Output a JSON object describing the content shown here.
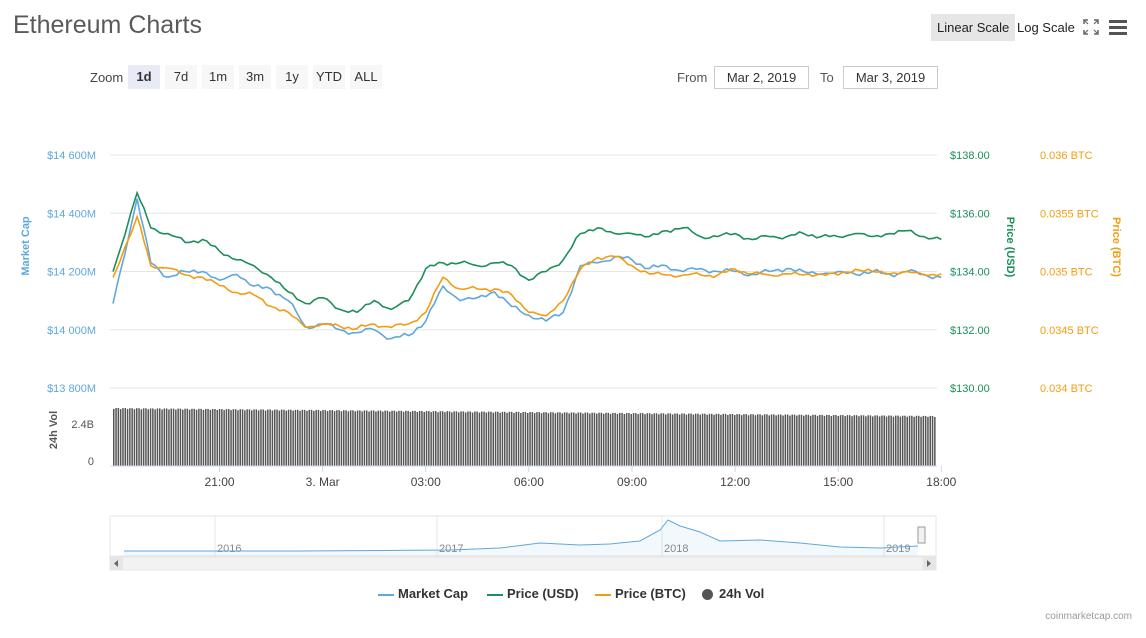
{
  "header": {
    "title": "Ethereum Charts"
  },
  "toolbar": {
    "linear_scale": "Linear Scale",
    "log_scale": "Log Scale",
    "fullscreen_icon": "fullscreen-icon",
    "menu_icon": "hamburger-menu-icon"
  },
  "zoom": {
    "label": "Zoom",
    "options": [
      "1d",
      "7d",
      "1m",
      "3m",
      "1y",
      "YTD",
      "ALL"
    ],
    "selected": "1d"
  },
  "range": {
    "from_label": "From",
    "from_value": "Mar 2, 2019",
    "to_label": "To",
    "to_value": "Mar 3, 2019"
  },
  "colors": {
    "market_cap": "#5fa8dc",
    "price_usd": "#1e8e5b",
    "price_btc": "#f39c12",
    "volume": "#555555",
    "navigator": "#5fa8dc"
  },
  "chart_data": {
    "type": "line",
    "left_axis": {
      "title": "Market Cap",
      "ticks": [
        "$14 600M",
        "$14 400M",
        "$14 200M",
        "$14 000M",
        "$13 800M"
      ],
      "range": [
        13800,
        14600
      ],
      "unit": "M USD"
    },
    "right_axis_usd": {
      "title": "Price (USD)",
      "ticks": [
        "$138.00",
        "$136.00",
        "$134.00",
        "$132.00",
        "$130.00"
      ],
      "range": [
        130,
        138
      ]
    },
    "right_axis_btc": {
      "title": "Price (BTC)",
      "ticks": [
        "0.036 BTC",
        "0.0355 BTC",
        "0.035 BTC",
        "0.0345 BTC",
        "0.034 BTC"
      ],
      "range": [
        0.034,
        0.036
      ]
    },
    "x_ticks": [
      "21:00",
      "3. Mar",
      "03:00",
      "06:00",
      "09:00",
      "12:00",
      "15:00",
      "18:00"
    ],
    "x_hours": [
      -0.1,
      0.6,
      1.0,
      1.5,
      2.0,
      2.5,
      3.0,
      3.5,
      4.0,
      4.5,
      5.0,
      5.5,
      6.0,
      6.5,
      7.0,
      7.5,
      8.0,
      8.5,
      9.0,
      9.5,
      10.0,
      10.5,
      11.0,
      11.5,
      12.0,
      12.5,
      13.0,
      13.5,
      14.0,
      14.5,
      15.0,
      15.5,
      16.0,
      16.5,
      17.0,
      17.5,
      18.0,
      18.5,
      19.0,
      19.5,
      20.0,
      20.5,
      21.0,
      21.5,
      22.0,
      22.5,
      23.0,
      23.5,
      24.0
    ],
    "series": [
      {
        "name": "Market Cap",
        "axis": "left",
        "values": [
          14090,
          14450,
          14230,
          14180,
          14200,
          14200,
          14170,
          14190,
          14150,
          14140,
          14100,
          14010,
          14020,
          14000,
          13990,
          14000,
          13970,
          13980,
          14030,
          14150,
          14100,
          14110,
          14130,
          14080,
          14050,
          14030,
          14060,
          14220,
          14230,
          14250,
          14240,
          14210,
          14220,
          14200,
          14210,
          14200,
          14200,
          14190,
          14200,
          14210,
          14200,
          14190,
          14200,
          14190,
          14200,
          14190,
          14200,
          14190,
          14180
        ]
      },
      {
        "name": "Price (USD)",
        "axis": "usd",
        "values": [
          134.0,
          136.7,
          135.5,
          135.3,
          135.0,
          135.1,
          134.7,
          134.4,
          134.2,
          133.8,
          133.3,
          132.9,
          133.1,
          132.7,
          132.6,
          133.0,
          132.7,
          133.0,
          134.1,
          134.3,
          134.3,
          134.2,
          134.3,
          134.2,
          133.7,
          134.0,
          134.4,
          135.3,
          135.5,
          135.3,
          135.3,
          135.2,
          135.4,
          135.5,
          135.2,
          135.2,
          135.3,
          135.1,
          135.2,
          135.2,
          135.3,
          135.2,
          135.2,
          135.3,
          135.2,
          135.3,
          135.4,
          135.2,
          135.1
        ]
      },
      {
        "name": "Price (BTC)",
        "axis": "btc",
        "values": [
          0.03495,
          0.03547,
          0.03505,
          0.03503,
          0.03497,
          0.03495,
          0.03488,
          0.03482,
          0.0348,
          0.0347,
          0.03465,
          0.03452,
          0.03455,
          0.03453,
          0.03451,
          0.03455,
          0.03452,
          0.03455,
          0.03465,
          0.03495,
          0.03485,
          0.03485,
          0.03485,
          0.0348,
          0.03465,
          0.03462,
          0.03475,
          0.03502,
          0.03512,
          0.03513,
          0.03505,
          0.03498,
          0.03497,
          0.03497,
          0.03497,
          0.03497,
          0.03502,
          0.03498,
          0.03497,
          0.03498,
          0.03497,
          0.03498,
          0.03497,
          0.03502,
          0.035,
          0.03498,
          0.035,
          0.03497,
          0.03498
        ]
      },
      {
        "name": "24h Vol",
        "axis": "volume",
        "type": "bar",
        "value": 2.9,
        "unit": "B USD"
      }
    ],
    "volume_axis": {
      "title": "24h Vol",
      "ticks": [
        "2.4B",
        "0"
      ]
    },
    "navigator": {
      "years": [
        "2016",
        "2017",
        "2018",
        "2019"
      ]
    },
    "legend": [
      "Market Cap",
      "Price (USD)",
      "Price (BTC)",
      "24h Vol"
    ],
    "grid": true
  },
  "footer": {
    "credit": "coinmarketcap.com"
  }
}
